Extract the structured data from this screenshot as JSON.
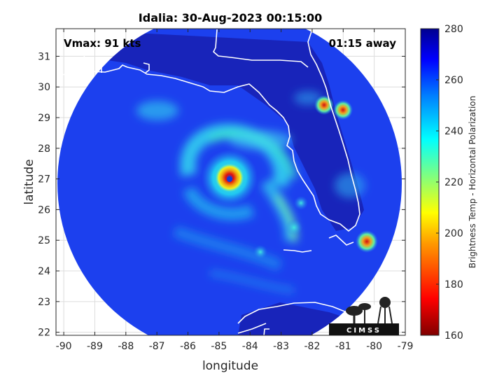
{
  "figure": {
    "title": "Idalia: 30-Aug-2023 00:15:00",
    "vmax_text": "Vmax: 91 kts",
    "time_away_text": "01:15 away",
    "xlabel": "longitude",
    "ylabel": "latitude",
    "colorbar_label": "Brightness Temp - Horizontal Polarization",
    "logo_text": "CIMSS"
  },
  "map": {
    "type": "satellite-swath",
    "xlim": [
      -90.25,
      -79
    ],
    "ylim": [
      21.9,
      31.9
    ],
    "x_ticks": [
      -90,
      -89,
      -88,
      -87,
      -86,
      -85,
      -84,
      -83,
      -82,
      -81,
      -80,
      -79
    ],
    "x_tick_labels": [
      "-90",
      "-89",
      "-88",
      "-87",
      "-86",
      "-85",
      "-84",
      "-83",
      "-82",
      "-81",
      "-80",
      "-79"
    ],
    "y_ticks": [
      22,
      23,
      24,
      25,
      26,
      27,
      28,
      29,
      30,
      31
    ],
    "y_tick_labels": [
      "22",
      "23",
      "24",
      "25",
      "26",
      "27",
      "28",
      "29",
      "30",
      "31"
    ],
    "grid": true,
    "storm_center": {
      "lon": -84.9,
      "lat": 27.0
    },
    "swath_center": {
      "lon": -84.55,
      "lat": 26.85
    },
    "swath_radius_deg_lat": 5.0
  },
  "colorbar": {
    "min": 160,
    "max": 280,
    "ticks": [
      160,
      180,
      200,
      220,
      240,
      260,
      280
    ],
    "tick_labels": [
      "160",
      "180",
      "200",
      "220",
      "240",
      "260",
      "280"
    ],
    "colormap": "jet"
  },
  "colors": {
    "ocean_background": "#1a3ff0",
    "land_background": "#1a22b8",
    "coastline": "#ffffff",
    "eye": "#c81010",
    "eyewall": "#f0e020",
    "rainband": "#20d8e0"
  }
}
